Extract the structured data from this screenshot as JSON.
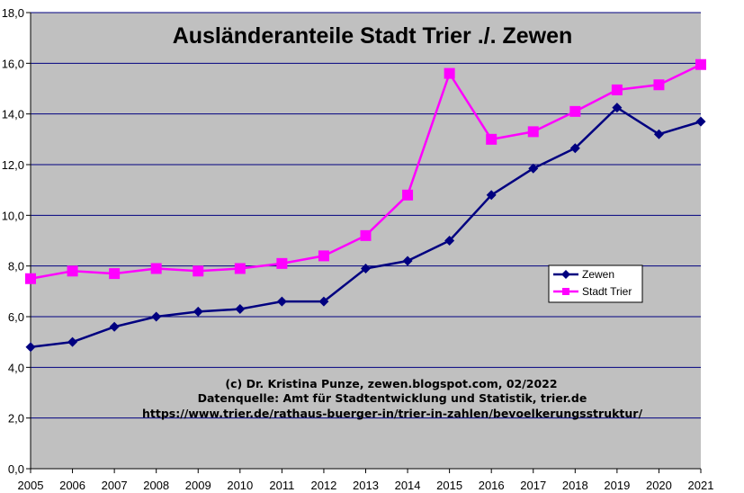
{
  "chart_data": {
    "type": "line",
    "title": "Ausländeranteile Stadt Trier ./. Zewen",
    "x": [
      "2005",
      "2006",
      "2007",
      "2008",
      "2009",
      "2010",
      "2011",
      "2012",
      "2013",
      "2014",
      "2015",
      "2016",
      "2017",
      "2018",
      "2019",
      "2020",
      "2021"
    ],
    "ylim": [
      0,
      18
    ],
    "yticks": [
      "0,0",
      "2,0",
      "4,0",
      "6,0",
      "8,0",
      "10,0",
      "12,0",
      "14,0",
      "16,0",
      "18,0"
    ],
    "grid": true,
    "legend_position": "right",
    "series": [
      {
        "name": "Zewen",
        "color": "#000080",
        "marker": "diamond",
        "values": [
          4.8,
          5.0,
          5.6,
          6.0,
          6.2,
          6.3,
          6.6,
          6.6,
          7.9,
          8.2,
          9.0,
          10.8,
          11.85,
          12.65,
          14.25,
          13.2,
          13.7
        ]
      },
      {
        "name": "Stadt Trier",
        "color": "#ff00ff",
        "marker": "square",
        "values": [
          7.5,
          7.8,
          7.7,
          7.9,
          7.8,
          7.9,
          8.1,
          8.4,
          9.2,
          10.8,
          15.6,
          13.0,
          13.3,
          14.1,
          14.95,
          15.15,
          15.95
        ]
      }
    ],
    "annotations": [
      "(c) Dr. Kristina Punze, zewen.blogspot.com, 02/2022",
      "Datenquelle: Amt für Stadtentwicklung und Statistik, trier.de",
      "https://www.trier.de/rathaus-buerger-in/trier-in-zahlen/bevoelkerungsstruktur/"
    ],
    "plot_background": "#c0c0c0"
  }
}
